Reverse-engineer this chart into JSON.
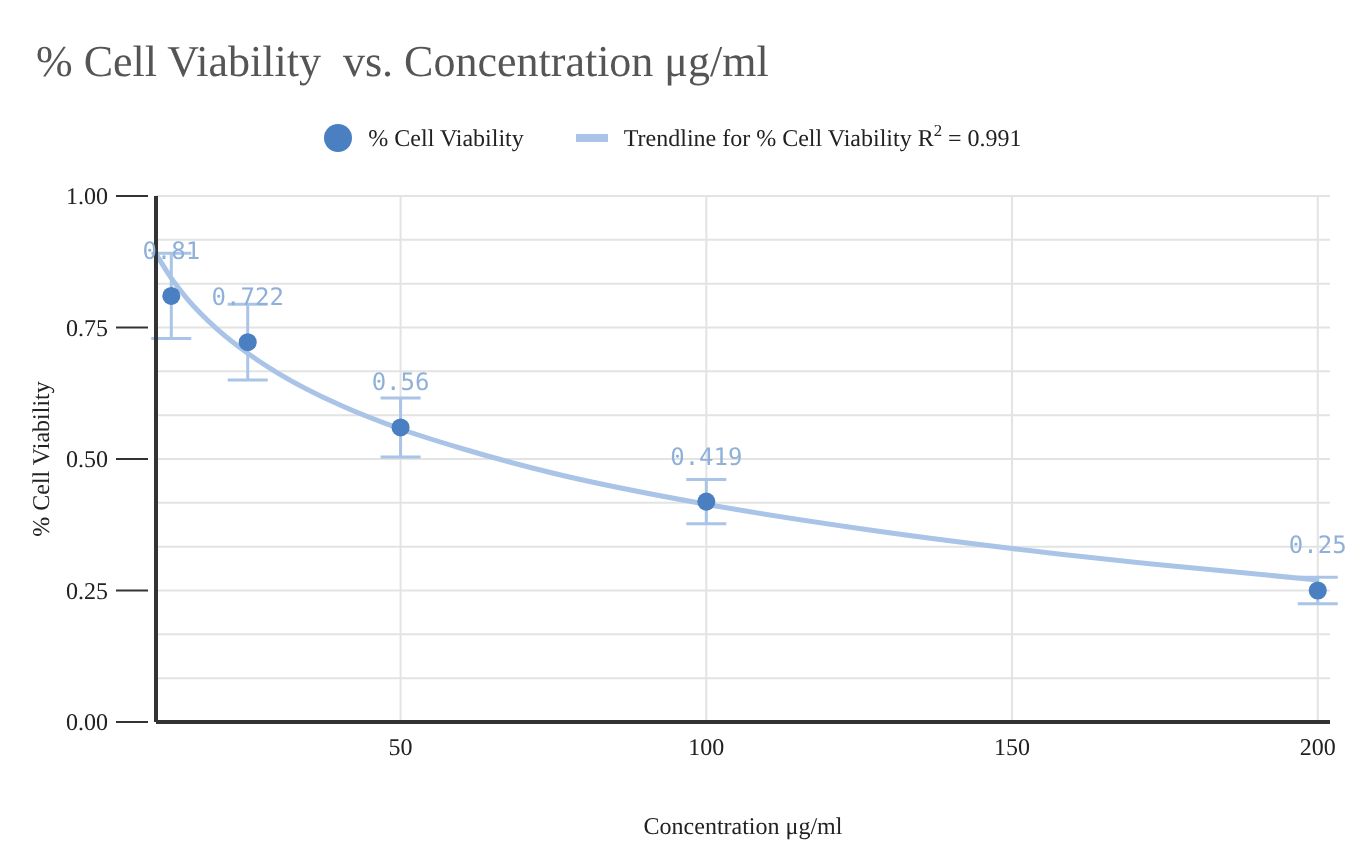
{
  "chart_data": {
    "type": "scatter",
    "title": "% Cell Viability  vs. Concentration μg/ml",
    "xlabel": "Concentration μg/ml",
    "ylabel": "% Cell Viability",
    "x": [
      12.5,
      25,
      50,
      100,
      200
    ],
    "series": [
      {
        "name": "% Cell Viability",
        "color": "#4a7fc1",
        "marker": "circle",
        "values": [
          0.81,
          0.722,
          0.56,
          0.419,
          0.25
        ],
        "errors": [
          0.081,
          0.072,
          0.056,
          0.042,
          0.025
        ],
        "value_labels": [
          "0.81",
          "0.722",
          "0.56",
          "0.419",
          "0.25"
        ]
      },
      {
        "name": "Trendline for % Cell Viability  R$^{2}$ = 0.991",
        "type": "line",
        "color": "#a9c4e6",
        "x": [
          10,
          12.5,
          15,
          20,
          25,
          30,
          40,
          50,
          60,
          75,
          100,
          125,
          150,
          175,
          200
        ],
        "values": [
          0.89,
          0.844,
          0.806,
          0.747,
          0.701,
          0.663,
          0.603,
          0.557,
          0.52,
          0.473,
          0.414,
          0.368,
          0.33,
          0.298,
          0.27
        ]
      }
    ],
    "legend": "top",
    "grid": true,
    "xlim": [
      10,
      202
    ],
    "xticks": [
      50,
      100,
      150,
      200
    ],
    "ylim": [
      0,
      1
    ],
    "yticks": [
      {
        "value": 0,
        "label": "0.00"
      },
      {
        "value": 0.0833,
        "label": null
      },
      {
        "value": 0.1667,
        "label": null
      },
      {
        "value": 0.25,
        "label": "0.25"
      },
      {
        "value": 0.3333,
        "label": null
      },
      {
        "value": 0.4167,
        "label": null
      },
      {
        "value": 0.5,
        "label": "0.50"
      },
      {
        "value": 0.5833,
        "label": null
      },
      {
        "value": 0.6667,
        "label": null
      },
      {
        "value": 0.75,
        "label": "0.75"
      },
      {
        "value": 0.8333,
        "label": null
      },
      {
        "value": 0.9167,
        "label": null
      },
      {
        "value": 1,
        "label": "1.00"
      }
    ]
  }
}
